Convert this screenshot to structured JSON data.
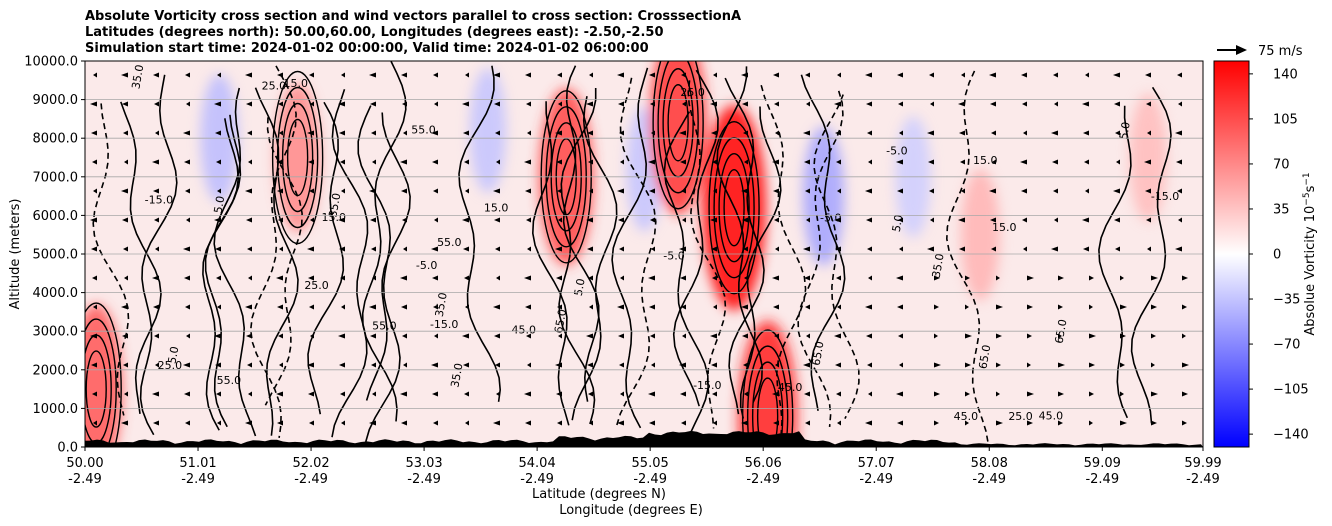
{
  "titles": [
    "Absolute Vorticity cross section and wind vectors parallel to cross section: CrosssectionA",
    "Latitudes (degrees north): 50.00,60.00, Longitudes (degrees east): -2.50,-2.50",
    "Simulation start time: 2024-01-02 00:00:00, Valid time: 2024-01-02 06:00:00"
  ],
  "chart_data": {
    "type": "heatmap",
    "title": "Absolute Vorticity cross section and wind vectors parallel to cross section: CrosssectionA",
    "ylabel": "Altitude (meters)",
    "xlabel_lines": [
      "Latitude (degrees N)",
      "Longitude (degrees E)"
    ],
    "ylim": [
      0,
      10000
    ],
    "xlim": [
      50.0,
      59.99
    ],
    "y_ticks": [
      "0.0",
      "1000.0",
      "2000.0",
      "3000.0",
      "4000.0",
      "5000.0",
      "6000.0",
      "7000.0",
      "8000.0",
      "9000.0",
      "10000.0"
    ],
    "y_tick_values": [
      0,
      1000,
      2000,
      3000,
      4000,
      5000,
      6000,
      7000,
      8000,
      9000,
      10000
    ],
    "x_ticks": [
      {
        "lat": "50.00",
        "lon": "-2.49",
        "value": 50.0
      },
      {
        "lat": "51.01",
        "lon": "-2.49",
        "value": 51.01
      },
      {
        "lat": "52.02",
        "lon": "-2.49",
        "value": 52.02
      },
      {
        "lat": "53.03",
        "lon": "-2.49",
        "value": 53.03
      },
      {
        "lat": "54.04",
        "lon": "-2.49",
        "value": 54.04
      },
      {
        "lat": "55.05",
        "lon": "-2.49",
        "value": 55.05
      },
      {
        "lat": "56.06",
        "lon": "-2.49",
        "value": 56.06
      },
      {
        "lat": "57.07",
        "lon": "-2.49",
        "value": 57.07
      },
      {
        "lat": "58.08",
        "lon": "-2.49",
        "value": 58.08
      },
      {
        "lat": "59.09",
        "lon": "-2.49",
        "value": 59.09
      },
      {
        "lat": "59.99",
        "lon": "-2.49",
        "value": 59.99
      }
    ],
    "grid": true,
    "colorbar": {
      "label": "Absolue Vorticity 10",
      "label_exp": "−5",
      "label_unit": "s",
      "label_unit_exp": "−1",
      "range": [
        -150,
        150
      ],
      "ticks": [
        "140",
        "105",
        "70",
        "35",
        "0",
        "−35",
        "−70",
        "−105",
        "−140"
      ],
      "tick_values": [
        140,
        105,
        70,
        35,
        0,
        -35,
        -70,
        -105,
        -140
      ],
      "colormap": "bwr",
      "colors": {
        "low": "#0000ff",
        "mid": "#ffffff",
        "high": "#ff0000"
      }
    },
    "wind_key": {
      "label": "75 m/s"
    },
    "contour_labels": [
      "5.0",
      "15.0",
      "25.0",
      "35.0",
      "45.0",
      "55.0",
      "65.0",
      "-5.0",
      "-15.0"
    ],
    "features": [
      {
        "lat": 50.1,
        "alt": 1500,
        "vorticity": 100
      },
      {
        "lat": 51.2,
        "alt": 8000,
        "vorticity": -40
      },
      {
        "lat": 51.9,
        "alt": 7500,
        "vorticity": 70
      },
      {
        "lat": 53.6,
        "alt": 8200,
        "vorticity": -35
      },
      {
        "lat": 54.3,
        "alt": 7000,
        "vorticity": 110
      },
      {
        "lat": 55.0,
        "alt": 7200,
        "vorticity": -35
      },
      {
        "lat": 55.3,
        "alt": 8400,
        "vorticity": 120
      },
      {
        "lat": 55.8,
        "alt": 6200,
        "vorticity": 150
      },
      {
        "lat": 56.6,
        "alt": 6500,
        "vorticity": -55
      },
      {
        "lat": 56.1,
        "alt": 800,
        "vorticity": 130
      },
      {
        "lat": 57.4,
        "alt": 7000,
        "vorticity": -30
      },
      {
        "lat": 58.0,
        "alt": 5500,
        "vorticity": 45
      },
      {
        "lat": 59.5,
        "alt": 7500,
        "vorticity": 40
      }
    ]
  }
}
